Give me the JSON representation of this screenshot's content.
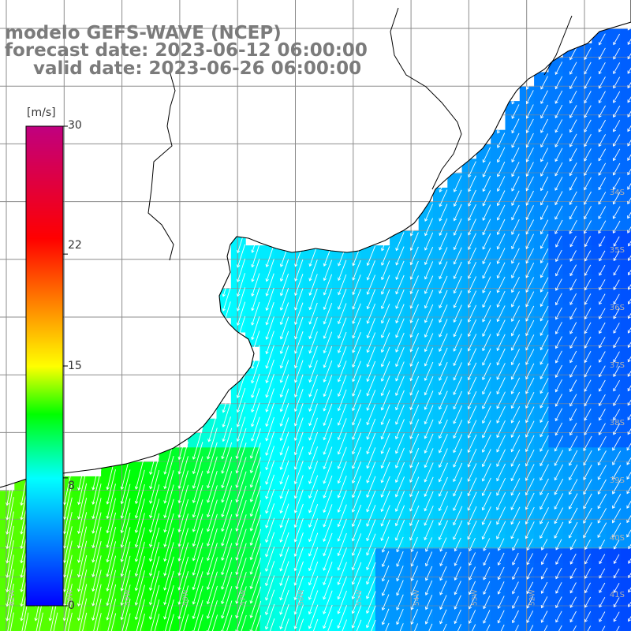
{
  "title": {
    "model": "modelo GEFS-WAVE (NCEP)",
    "forecast": "forecast date: 2023-06-12 06:00:00",
    "valid": "valid date: 2023-06-26 06:00:00"
  },
  "colorbar": {
    "unit": "[m/s]",
    "ticks": [
      "30",
      "22",
      "15",
      "8",
      "0"
    ],
    "tick_values": [
      30,
      22,
      15,
      8,
      0
    ],
    "range": [
      0,
      30
    ],
    "colors": [
      "#0000ff",
      "#0080ff",
      "#00ffff",
      "#00ff00",
      "#ffff00",
      "#ff8000",
      "#ff0000",
      "#c0007f"
    ]
  },
  "map": {
    "land_color": "#ffffff",
    "coast_color": "#000000",
    "grid_color": "#8c8c8c",
    "lat_labels": [
      "34S",
      "35S",
      "36S",
      "37S",
      "38S",
      "39S",
      "40S",
      "41S"
    ],
    "lon_labels": [
      "61W",
      "60W",
      "59W",
      "58W",
      "57W",
      "56W",
      "55W",
      "54W",
      "53W",
      "52W"
    ],
    "wind_direction": "from north-northeast toward south-southwest",
    "wind_speed_range_ms": [
      3,
      12
    ]
  }
}
